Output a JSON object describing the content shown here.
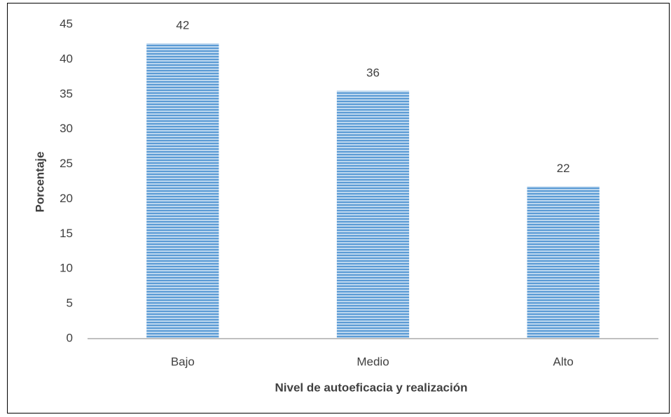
{
  "chart_data": {
    "type": "bar",
    "categories": [
      "Bajo",
      "Medio",
      "Alto"
    ],
    "values": [
      42.3,
      35.5,
      21.8
    ],
    "value_labels": [
      "42",
      "36",
      "22"
    ],
    "color": "#5b9bd5",
    "xlabel": "Nivel de autoeficacia y realización",
    "ylabel": "Porcentaje",
    "ylim": [
      0,
      45
    ],
    "yticks": [
      0,
      5,
      10,
      15,
      20,
      25,
      30,
      35,
      40,
      45
    ],
    "grid": false
  }
}
